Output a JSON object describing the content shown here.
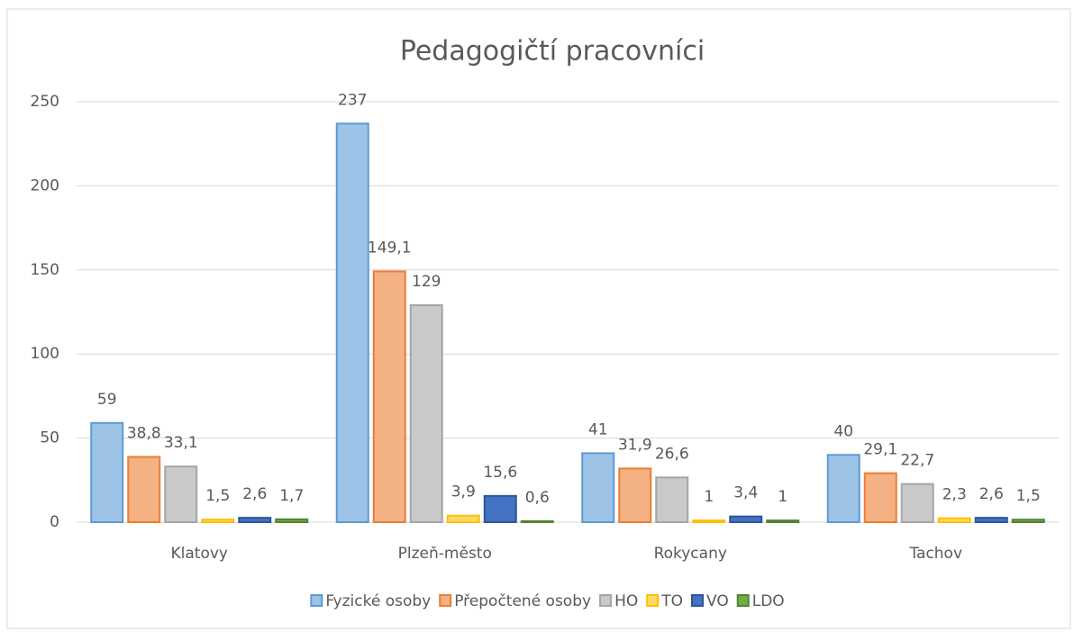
{
  "chart_data": {
    "type": "bar",
    "title": "Pedagogičtí  pracovníci",
    "categories": [
      "Klatovy",
      "Plzeň-město",
      "Rokycany",
      "Tachov"
    ],
    "series": [
      {
        "name": "Fyzické osoby",
        "color": "#9dc3e6",
        "values": [
          59,
          237,
          41,
          40
        ]
      },
      {
        "name": "Přepočtené osoby",
        "color": "#f4b183",
        "values": [
          38.8,
          149.1,
          31.9,
          29.1
        ],
        "value_labels": [
          "38,8",
          "149,1",
          "31,9",
          "29,1"
        ]
      },
      {
        "name": "HO",
        "color": "#c9c9c9",
        "values": [
          33.1,
          129,
          26.6,
          22.7
        ],
        "value_labels": [
          "33,1",
          "129",
          "26,6",
          "22,7"
        ]
      },
      {
        "name": "TO",
        "color": "#ffd966",
        "values": [
          1.5,
          3.9,
          1,
          2.3
        ],
        "value_labels": [
          "1,5",
          "3,9",
          "1",
          "2,3"
        ]
      },
      {
        "name": "VO",
        "color": "#4472c4",
        "values": [
          2.6,
          15.6,
          3.4,
          2.6
        ],
        "value_labels": [
          "2,6",
          "15,6",
          "3,4",
          "2,6"
        ]
      },
      {
        "name": "LDO",
        "color": "#70ad47",
        "values": [
          1.7,
          0.6,
          1,
          1.5
        ],
        "value_labels": [
          "1,7",
          "0,6",
          "1",
          "1,5"
        ]
      }
    ],
    "ylim": [
      0,
      250
    ],
    "yticks": [
      0,
      50,
      100,
      150,
      200,
      250
    ],
    "grid": true,
    "legend": "bottom"
  }
}
